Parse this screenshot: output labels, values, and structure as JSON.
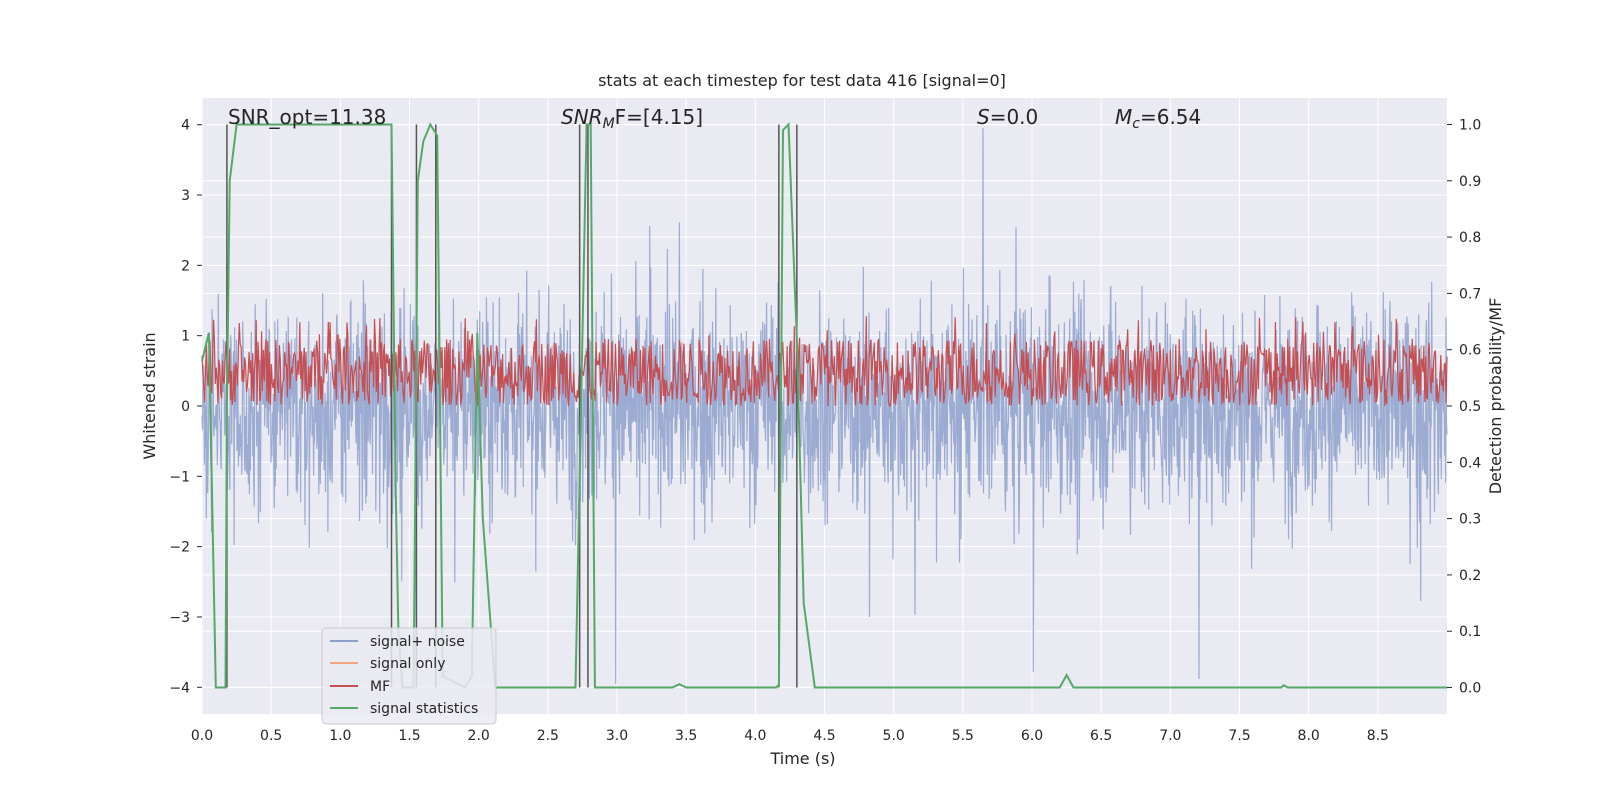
{
  "chart_data": {
    "type": "line",
    "title": "stats at each timestep for test data 416 [signal=0]",
    "xlabel": "Time (s)",
    "ylabel": "Whitened strain",
    "y2label": "Detection probability/MF",
    "xlim": [
      0.0,
      9.0
    ],
    "ylim": [
      -4.38,
      4.38
    ],
    "y2lim": [
      -0.047,
      1.047
    ],
    "x_ticks": [
      "0.0",
      "0.5",
      "1.0",
      "1.5",
      "2.0",
      "2.5",
      "3.0",
      "3.5",
      "4.0",
      "4.5",
      "5.0",
      "5.5",
      "6.0",
      "6.5",
      "7.0",
      "7.5",
      "8.0",
      "8.5"
    ],
    "y_ticks": [
      "4",
      "3",
      "2",
      "1",
      "0",
      "−1",
      "−2",
      "−3",
      "−4"
    ],
    "y2_ticks": [
      "1.0",
      "0.9",
      "0.8",
      "0.7",
      "0.6",
      "0.5",
      "0.4",
      "0.3",
      "0.2",
      "0.1",
      "0.0"
    ],
    "grid": true,
    "legend_position": "lower-left",
    "annotations": {
      "snr_opt": "SNR_opt=11.38",
      "snr_mf": "SNR",
      "snr_mf_sub": "M",
      "snr_mf_tail": "F=[4.15]",
      "s": "S",
      "s_tail": "=0.0",
      "mc": "M",
      "mc_sub": "c",
      "mc_tail": "=6.54"
    },
    "series": [
      {
        "name": "signal+ noise",
        "color": "#8da0cb",
        "axis": "left",
        "description": "dense whitened noise, roughly ±2 with spikes to ±4"
      },
      {
        "name": "signal only",
        "color": "#f4a582",
        "axis": "left",
        "values": []
      },
      {
        "name": "MF",
        "color": "#c44e52",
        "axis": "right",
        "band": [
          0.5,
          0.62
        ]
      },
      {
        "name": "signal statistics",
        "color": "#55a868",
        "axis": "right",
        "x": [
          0.0,
          0.05,
          0.1,
          0.13,
          0.17,
          0.18,
          0.2,
          0.25,
          1.37,
          1.4,
          1.42,
          1.45,
          1.5,
          1.53,
          1.56,
          1.6,
          1.65,
          1.7,
          1.74,
          1.9,
          1.95,
          1.99,
          2.03,
          2.12,
          2.5,
          2.7,
          2.78,
          2.81,
          2.84,
          2.9,
          3.0,
          3.4,
          3.45,
          3.5,
          4.0,
          4.15,
          4.17,
          4.2,
          4.24,
          4.3,
          4.35,
          4.43,
          4.46,
          5.0,
          6.2,
          6.25,
          6.3,
          7.0,
          7.8,
          7.82,
          7.85,
          9.0
        ],
        "y": [
          0.58,
          0.63,
          0.0,
          0.0,
          0.0,
          0.5,
          0.9,
          1.0,
          1.0,
          0.35,
          0.1,
          0.0,
          0.0,
          0.0,
          0.9,
          0.97,
          1.0,
          0.98,
          0.02,
          0.0,
          0.02,
          0.63,
          0.3,
          0.0,
          0.0,
          0.0,
          1.0,
          1.0,
          0.0,
          0.0,
          0.0,
          0.0,
          0.006,
          0.0,
          0.0,
          0.0,
          0.005,
          0.99,
          1.0,
          0.62,
          0.15,
          0.0,
          0.0,
          0.0,
          0.0,
          0.022,
          0.0,
          0.0,
          0.0,
          0.004,
          0.0,
          0.0
        ]
      }
    ],
    "vertical_lines_x": [
      0.18,
      1.37,
      1.55,
      1.69,
      2.73,
      2.79,
      4.17,
      4.3
    ]
  }
}
